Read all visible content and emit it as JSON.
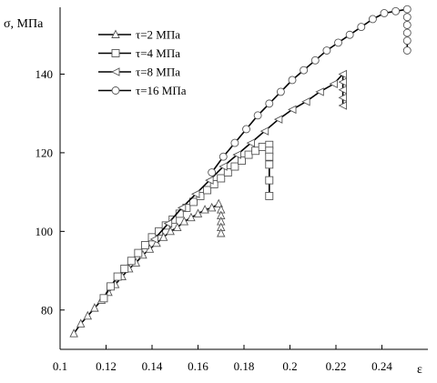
{
  "chart_data": {
    "type": "line",
    "title": "",
    "xlabel": "ε",
    "ylabel": "σ, МПа",
    "xlim": [
      0.1,
      0.26
    ],
    "ylim": [
      70,
      157
    ],
    "x_ticks": [
      "0.1",
      "0.12",
      "0.14",
      "0.16",
      "0.18",
      "0.2",
      "0.22",
      "0.24"
    ],
    "y_ticks": [
      "80",
      "100",
      "120",
      "140"
    ],
    "grid": false,
    "legend": "top-left",
    "series": [
      {
        "name": "τ=2 МПа",
        "marker": "triangle",
        "x": [
          0.106,
          0.109,
          0.112,
          0.115,
          0.118,
          0.121,
          0.124,
          0.127,
          0.13,
          0.133,
          0.136,
          0.139,
          0.142,
          0.145,
          0.148,
          0.151,
          0.154,
          0.157,
          0.16,
          0.163,
          0.166,
          0.169,
          0.17,
          0.17,
          0.17,
          0.17,
          0.17
        ],
        "y": [
          74,
          76.5,
          78.5,
          80.5,
          82.5,
          84.5,
          86.5,
          88.5,
          90.5,
          92,
          94,
          95.5,
          97,
          98.5,
          100,
          101,
          102.5,
          103.5,
          104.5,
          105.5,
          106,
          107,
          105.5,
          104,
          102.5,
          101,
          99.5
        ]
      },
      {
        "name": "τ=4 МПа",
        "marker": "square",
        "x": [
          0.119,
          0.122,
          0.125,
          0.128,
          0.131,
          0.134,
          0.137,
          0.14,
          0.143,
          0.146,
          0.149,
          0.152,
          0.155,
          0.158,
          0.161,
          0.164,
          0.167,
          0.17,
          0.173,
          0.176,
          0.179,
          0.182,
          0.185,
          0.188,
          0.191,
          0.191,
          0.191,
          0.191,
          0.191,
          0.191
        ],
        "y": [
          83,
          86,
          88.5,
          90.5,
          92.5,
          94.5,
          96.5,
          98.5,
          100,
          101.5,
          103,
          104.5,
          106,
          107.5,
          109,
          110.5,
          112,
          113.5,
          115,
          116.5,
          118,
          119.5,
          120.5,
          121.5,
          122,
          120.5,
          119,
          117,
          113,
          109
        ]
      },
      {
        "name": "τ=8 МПа",
        "marker": "left-triangle",
        "x": [
          0.141,
          0.147,
          0.153,
          0.159,
          0.165,
          0.171,
          0.177,
          0.183,
          0.189,
          0.195,
          0.201,
          0.207,
          0.213,
          0.219,
          0.223,
          0.223,
          0.223,
          0.223,
          0.223
        ],
        "y": [
          98,
          102,
          106,
          109.5,
          113,
          116.5,
          119.5,
          122.5,
          125.5,
          128.5,
          131,
          133,
          135.5,
          137.5,
          140,
          138,
          136,
          134,
          132
        ]
      },
      {
        "name": "τ=16 МПа",
        "marker": "circle",
        "x": [
          0.166,
          0.171,
          0.176,
          0.181,
          0.186,
          0.191,
          0.196,
          0.201,
          0.206,
          0.211,
          0.216,
          0.221,
          0.226,
          0.231,
          0.236,
          0.241,
          0.246,
          0.251,
          0.251,
          0.251,
          0.251,
          0.251,
          0.251
        ],
        "y": [
          115,
          119,
          122.5,
          126,
          129.5,
          132.5,
          135.5,
          138.5,
          141,
          143.5,
          146,
          148,
          150,
          152,
          154,
          155.5,
          156,
          156.5,
          154.5,
          152.5,
          150.5,
          148.5,
          146
        ]
      }
    ]
  }
}
